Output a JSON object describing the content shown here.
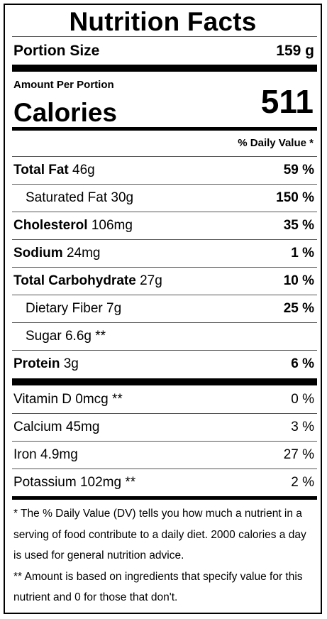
{
  "title": "Nutrition Facts",
  "portion": {
    "label": "Portion Size",
    "value": "159 g"
  },
  "amount_label": "Amount Per Portion",
  "calories": {
    "label": "Calories",
    "value": "511"
  },
  "dv_header": "% Daily Value *",
  "nutrients": [
    {
      "name": "Total Fat",
      "amount": "46g",
      "pct": "59 %"
    },
    {
      "name": "Saturated Fat 30g",
      "amount": "",
      "pct": "150 %"
    },
    {
      "name": "Cholesterol",
      "amount": "106mg",
      "pct": "35 %"
    },
    {
      "name": "Sodium",
      "amount": "24mg",
      "pct": "1 %"
    },
    {
      "name": "Total Carbohydrate",
      "amount": "27g",
      "pct": "10 %"
    },
    {
      "name": "Dietary Fiber 7g",
      "amount": "",
      "pct": "25 %"
    },
    {
      "name": "Sugar 6.6g **",
      "amount": "",
      "pct": ""
    },
    {
      "name": "Protein",
      "amount": "3g",
      "pct": "6 %"
    }
  ],
  "vitamins": [
    {
      "name": "Vitamin D 0mcg **",
      "pct": "0 %"
    },
    {
      "name": "Calcium 45mg",
      "pct": "3 %"
    },
    {
      "name": "Iron 4.9mg",
      "pct": "27 %"
    },
    {
      "name": "Potassium 102mg **",
      "pct": "2 %"
    }
  ],
  "footnotes": [
    "* The % Daily Value (DV) tells you how much a nutrient in a serving of food contribute to a daily diet. 2000 calories a day is used for general nutrition advice.",
    "** Amount is based on ingredients that specify value for this nutrient and 0 for those that don't."
  ]
}
